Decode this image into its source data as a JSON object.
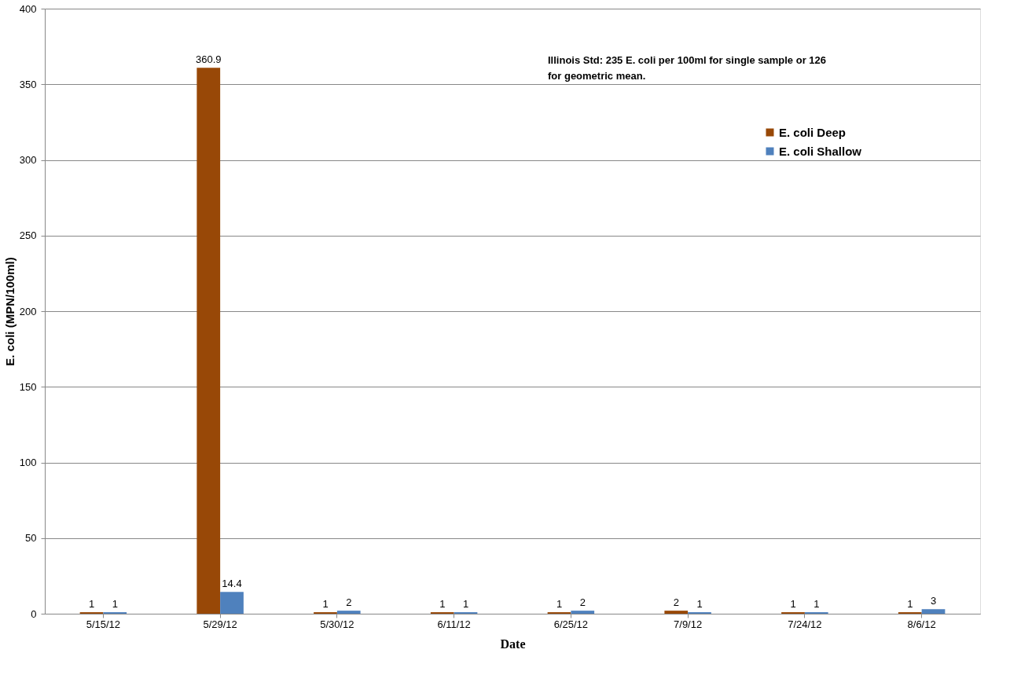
{
  "chart_data": {
    "type": "bar",
    "xlabel": "Date",
    "ylabel": "E. coli (MPN/100ml)",
    "categories": [
      "5/15/12",
      "5/29/12",
      "5/30/12",
      "6/11/12",
      "6/25/12",
      "7/9/12",
      "7/24/12",
      "8/6/12"
    ],
    "series": [
      {
        "name": "E. coli Deep",
        "color": "#984807",
        "values": [
          1,
          360.9,
          1,
          1,
          1,
          2,
          1,
          1
        ]
      },
      {
        "name": "E. coli Shallow",
        "color": "#4f81bd",
        "values": [
          1,
          14.4,
          2,
          1,
          2,
          1,
          1,
          3
        ]
      }
    ],
    "ylim": [
      0,
      400
    ],
    "yticks": [
      0,
      50,
      100,
      150,
      200,
      250,
      300,
      350,
      400
    ],
    "grid": "y",
    "legend": "top right",
    "data_labels": true,
    "annotations": [
      "Illinois Std:  235 E. coli per 100ml for single sample or 126 for geometric mean."
    ]
  }
}
